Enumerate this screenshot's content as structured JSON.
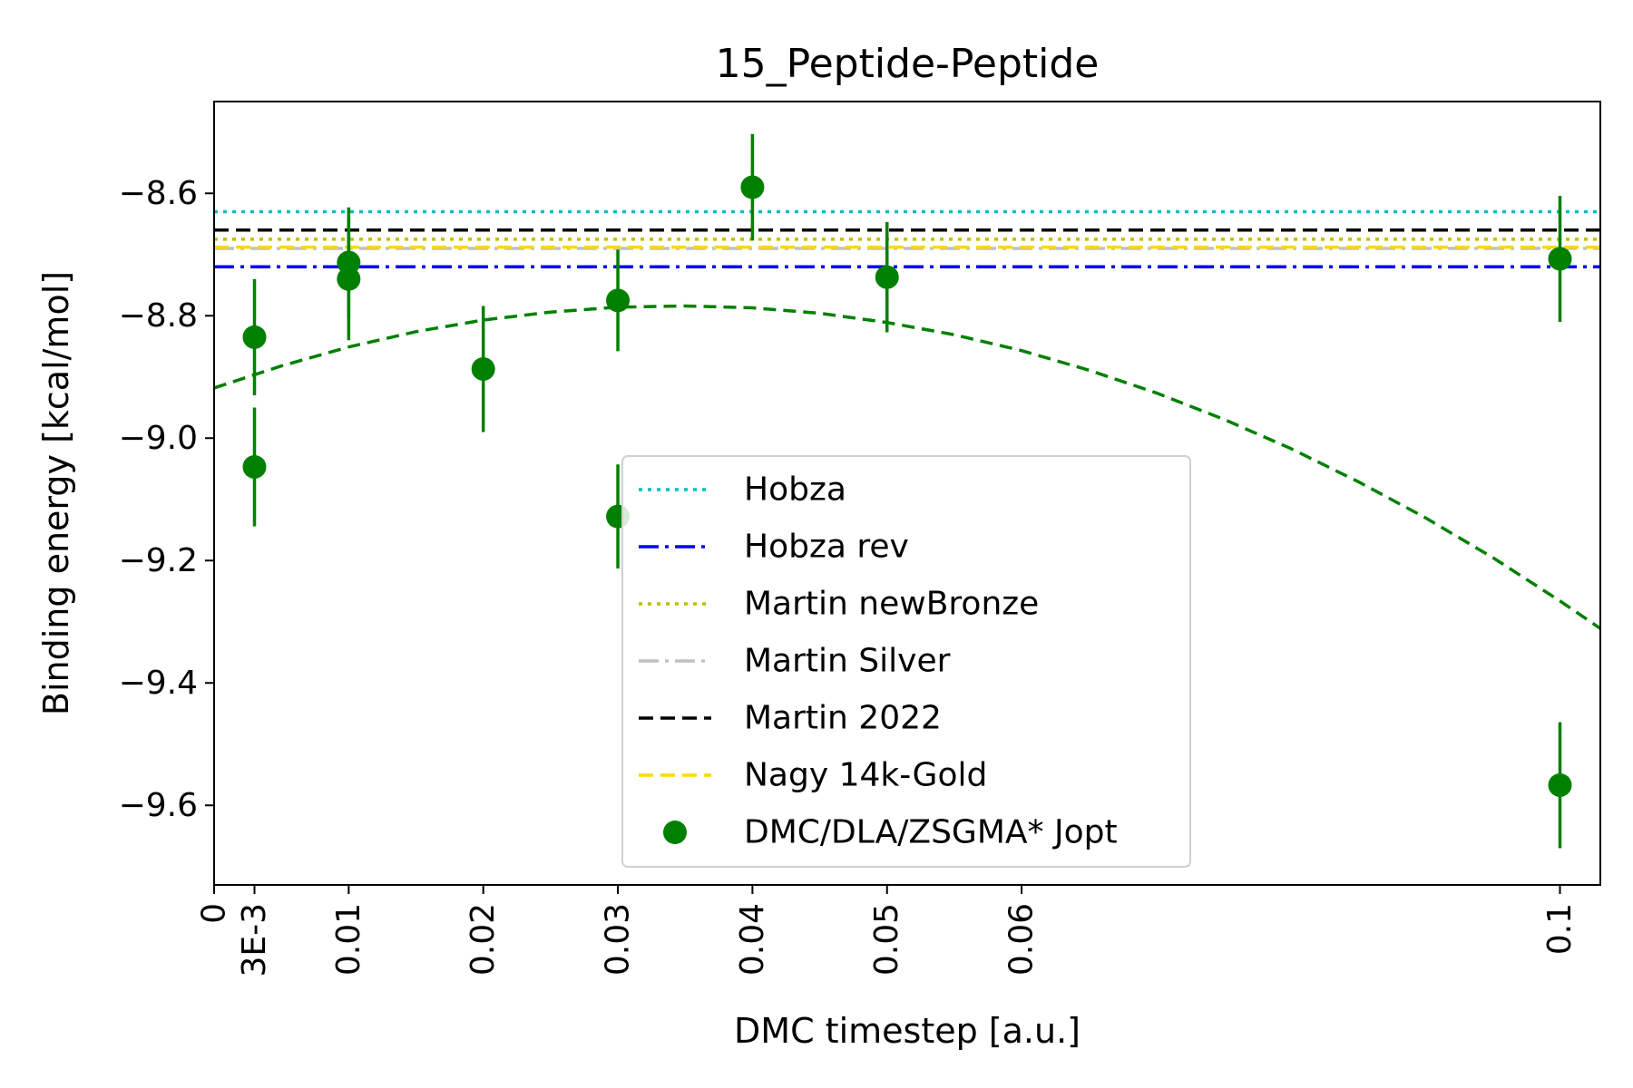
{
  "chart_data": {
    "type": "scatter",
    "title": "15_Peptide-Peptide",
    "xlabel": "DMC timestep [a.u.]",
    "ylabel": "Binding energy [kcal/mol]",
    "xlim": [
      0,
      0.103
    ],
    "ylim": [
      -9.73,
      -8.45
    ],
    "x_ticks": [
      {
        "value": 0,
        "label": "0"
      },
      {
        "value": 0.003,
        "label": "3E-3"
      },
      {
        "value": 0.01,
        "label": "0.01"
      },
      {
        "value": 0.02,
        "label": "0.02"
      },
      {
        "value": 0.03,
        "label": "0.03"
      },
      {
        "value": 0.04,
        "label": "0.04"
      },
      {
        "value": 0.05,
        "label": "0.05"
      },
      {
        "value": 0.06,
        "label": "0.06"
      },
      {
        "value": 0.1,
        "label": "0.1"
      }
    ],
    "y_ticks": [
      {
        "value": -8.6,
        "label": "−8.6"
      },
      {
        "value": -8.8,
        "label": "−8.8"
      },
      {
        "value": -9.0,
        "label": "−9.0"
      },
      {
        "value": -9.2,
        "label": "−9.2"
      },
      {
        "value": -9.4,
        "label": "−9.4"
      },
      {
        "value": -9.6,
        "label": "−9.6"
      }
    ],
    "reference_lines": [
      {
        "name": "Hobza",
        "y": -8.63,
        "color": "#00bfbf",
        "dash": "4,6"
      },
      {
        "name": "Hobza rev",
        "y": -8.72,
        "color": "#0000ff",
        "dash": "22,7,4,7"
      },
      {
        "name": "Martin newBronze",
        "y": -8.675,
        "color": "#bfbf00",
        "dash": "4,6"
      },
      {
        "name": "Martin Silver",
        "y": -8.69,
        "color": "#c0c0c0",
        "dash": "22,7,4,7"
      },
      {
        "name": "Martin 2022",
        "y": -8.66,
        "color": "#000000",
        "dash": "16,8"
      },
      {
        "name": "Nagy 14k-Gold",
        "y": -8.688,
        "color": "#ffd700",
        "dash": "16,8"
      }
    ],
    "series": [
      {
        "name": "DMC/DLA/ZSGMA* Jopt",
        "color": "#008000",
        "points": [
          {
            "x": 0.003,
            "y": -8.835,
            "err": 0.095
          },
          {
            "x": 0.003,
            "y": -9.047,
            "err": 0.097
          },
          {
            "x": 0.01,
            "y": -8.713,
            "err": 0.09
          },
          {
            "x": 0.01,
            "y": -8.74,
            "err": 0.1
          },
          {
            "x": 0.02,
            "y": -8.887,
            "err": 0.103
          },
          {
            "x": 0.03,
            "y": -8.775,
            "err": 0.083
          },
          {
            "x": 0.03,
            "y": -9.128,
            "err": 0.085
          },
          {
            "x": 0.04,
            "y": -8.59,
            "err": 0.087
          },
          {
            "x": 0.05,
            "y": -8.737,
            "err": 0.09
          },
          {
            "x": 0.1,
            "y": -8.707,
            "err": 0.103
          },
          {
            "x": 0.1,
            "y": -9.567,
            "err": 0.103
          }
        ]
      }
    ],
    "fit": {
      "color": "#008000",
      "x": [
        0,
        0.005,
        0.01,
        0.015,
        0.02,
        0.025,
        0.03,
        0.035,
        0.04,
        0.045,
        0.05,
        0.055,
        0.06,
        0.065,
        0.07,
        0.075,
        0.08,
        0.085,
        0.09,
        0.095,
        0.1,
        0.103
      ],
      "y": [
        -8.918,
        -8.882,
        -8.851,
        -8.826,
        -8.807,
        -8.794,
        -8.786,
        -8.784,
        -8.787,
        -8.796,
        -8.811,
        -8.831,
        -8.857,
        -8.889,
        -8.926,
        -8.969,
        -9.017,
        -9.071,
        -9.13,
        -9.195,
        -9.266,
        -9.311
      ]
    },
    "legend_position": "center-right",
    "grid": false
  }
}
